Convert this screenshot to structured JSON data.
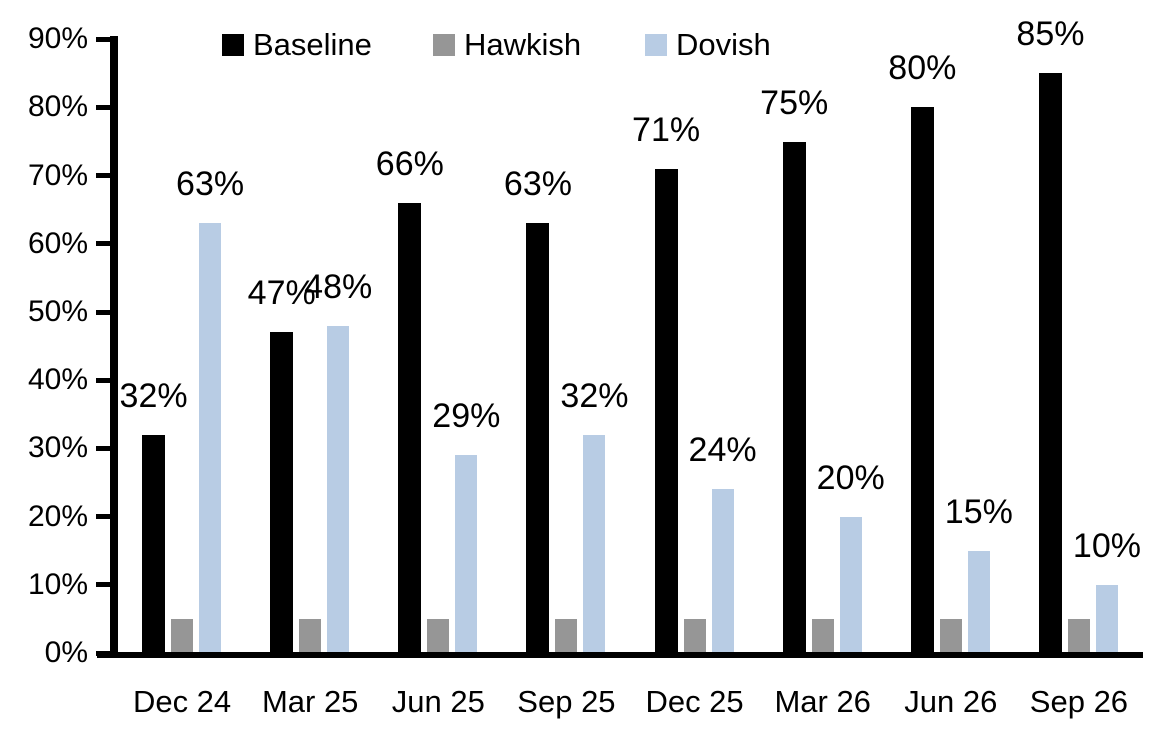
{
  "chart_data": {
    "type": "bar",
    "title": "",
    "categories": [
      "Dec 24",
      "Mar 25",
      "Jun 25",
      "Sep 25",
      "Dec 25",
      "Mar 26",
      "Jun 26",
      "Sep 26"
    ],
    "series": [
      {
        "name": "Baseline",
        "color": "#000000",
        "values": [
          32,
          47,
          66,
          63,
          71,
          75,
          80,
          85
        ],
        "data_labels": [
          "32%",
          "47%",
          "66%",
          "63%",
          "71%",
          "75%",
          "80%",
          "85%"
        ]
      },
      {
        "name": "Hawkish",
        "color": "#969696",
        "values": [
          5,
          5,
          5,
          5,
          5,
          5,
          5,
          5
        ],
        "data_labels": []
      },
      {
        "name": "Dovish",
        "color": "#B8CCE4",
        "values": [
          63,
          48,
          29,
          32,
          24,
          20,
          15,
          10
        ],
        "data_labels": [
          "63%",
          "48%",
          "29%",
          "32%",
          "24%",
          "20%",
          "15%",
          "10%"
        ]
      }
    ],
    "ylim": [
      0,
      90
    ],
    "ytick_step": 10,
    "ytick_labels": [
      "0%",
      "10%",
      "20%",
      "30%",
      "40%",
      "50%",
      "60%",
      "70%",
      "80%",
      "90%"
    ],
    "xlabel": "",
    "ylabel": "",
    "grid": false,
    "legend_position": "top",
    "legend": [
      "Baseline",
      "Hawkish",
      "Dovish"
    ],
    "axis_color": "#000000"
  }
}
